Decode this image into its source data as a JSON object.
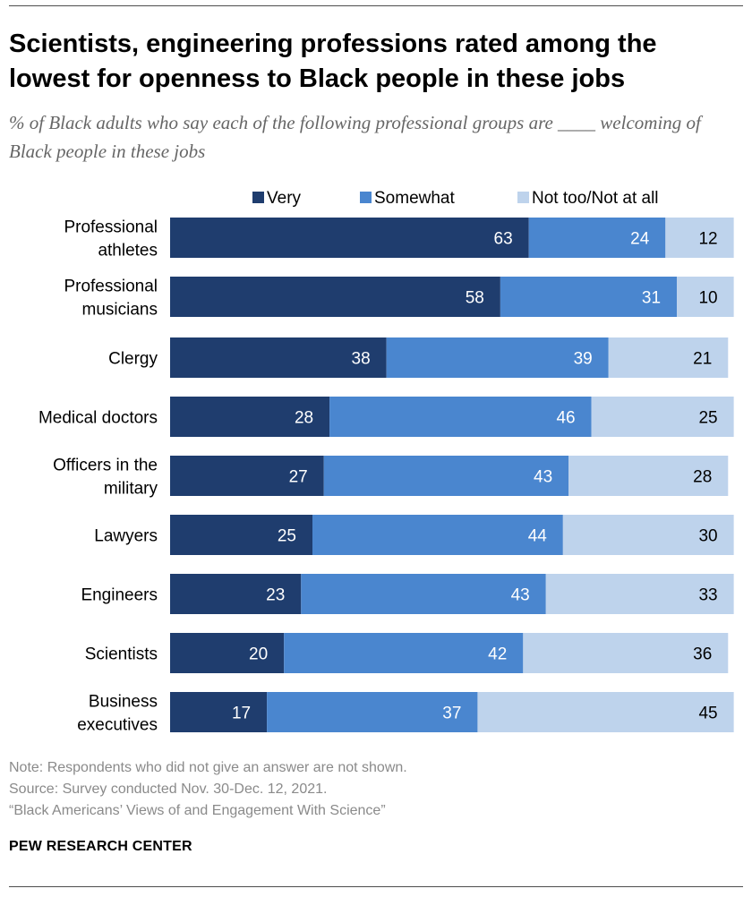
{
  "header": {
    "title": "Scientists, engineering professions rated among the lowest for openness to Black people in these jobs",
    "subtitle": "% of Black adults who say each of the following professional groups are ____ welcoming of Black people in these jobs"
  },
  "footer": {
    "note": "Note: Respondents who did not give an answer are not shown.",
    "source": "Source: Survey conducted Nov. 30-Dec. 12, 2021.",
    "report": "“Black Americans’ Views of and Engagement With Science”",
    "org": "PEW RESEARCH CENTER"
  },
  "chart_data": {
    "type": "bar",
    "orientation": "horizontal",
    "stacked": true,
    "categories": [
      [
        "Professional",
        "athletes"
      ],
      [
        "Professional",
        "musicians"
      ],
      [
        "Clergy"
      ],
      [
        "Medical doctors"
      ],
      [
        "Officers in the",
        "military"
      ],
      [
        "Lawyers"
      ],
      [
        "Engineers"
      ],
      [
        "Scientists"
      ],
      [
        "Business",
        "executives"
      ]
    ],
    "series": [
      {
        "name": "Very",
        "color": "#1f3d6e",
        "label_color": "#ffffff",
        "values": [
          63,
          58,
          38,
          28,
          27,
          25,
          23,
          20,
          17
        ]
      },
      {
        "name": "Somewhat",
        "color": "#4a86cf",
        "label_color": "#ffffff",
        "values": [
          24,
          31,
          39,
          46,
          43,
          44,
          43,
          42,
          37
        ]
      },
      {
        "name": "Not too/Not at all",
        "color": "#bed3ec",
        "label_color": "#000000",
        "values": [
          12,
          10,
          21,
          25,
          28,
          30,
          33,
          36,
          45
        ]
      }
    ],
    "xlim": [
      0,
      100
    ],
    "legend_position": "top",
    "grid": false
  }
}
